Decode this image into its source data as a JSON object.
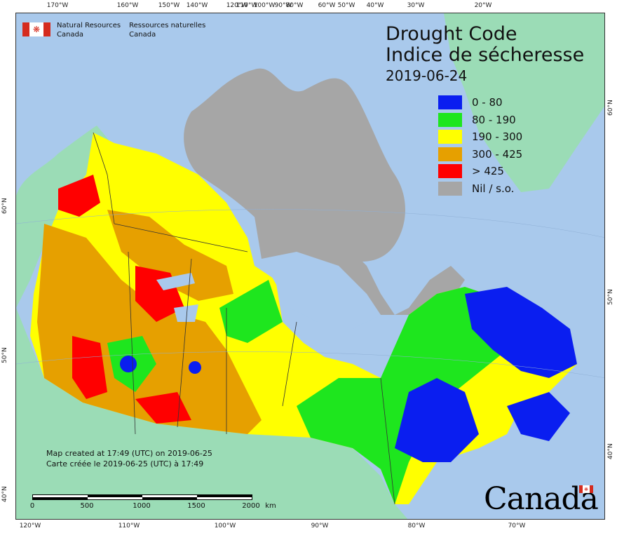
{
  "title_en": "Drought Code",
  "title_fr": "Indice de sécheresse",
  "date": "2019-06-24",
  "agency": {
    "en_line1": "Natural Resources",
    "en_line2": "Canada",
    "fr_line1": "Ressources naturelles",
    "fr_line2": "Canada"
  },
  "legend": [
    {
      "label": "0 - 80",
      "color": "#0a1ef0"
    },
    {
      "label": "80 - 190",
      "color": "#1ee61e"
    },
    {
      "label": "190 - 300",
      "color": "#ffff00"
    },
    {
      "label": "300 - 425",
      "color": "#e6a000"
    },
    {
      "label": "> 425",
      "color": "#ff0000"
    },
    {
      "label": "Nil / s.o.",
      "color": "#a6a6a6"
    }
  ],
  "credit_en": "Map created at 17:49 (UTC) on 2019-06-25",
  "credit_fr": "Carte créée le 2019-06-25 (UTC) à 17:49",
  "scale": {
    "labels": [
      "0",
      "500",
      "1000",
      "1500",
      "2000"
    ],
    "unit": "km"
  },
  "wordmark": "Canada",
  "ticks": {
    "top": [
      "170°W",
      "160°W",
      "150°W",
      "140°W",
      "120°W",
      "110°W",
      "100°W",
      "90°W",
      "80°W",
      "60°W",
      "50°W",
      "40°W",
      "30°W",
      "20°W"
    ],
    "bottom": [
      "120°W",
      "110°W",
      "100°W",
      "90°W",
      "80°W",
      "70°W"
    ],
    "left": [
      "60°N",
      "50°N",
      "40°N"
    ],
    "right": [
      "60°N",
      "50°N",
      "40°N"
    ]
  },
  "colors": {
    "water": "#a9c9ec",
    "land_outside": "#9bdcb6",
    "nil": "#a6a6a6"
  }
}
